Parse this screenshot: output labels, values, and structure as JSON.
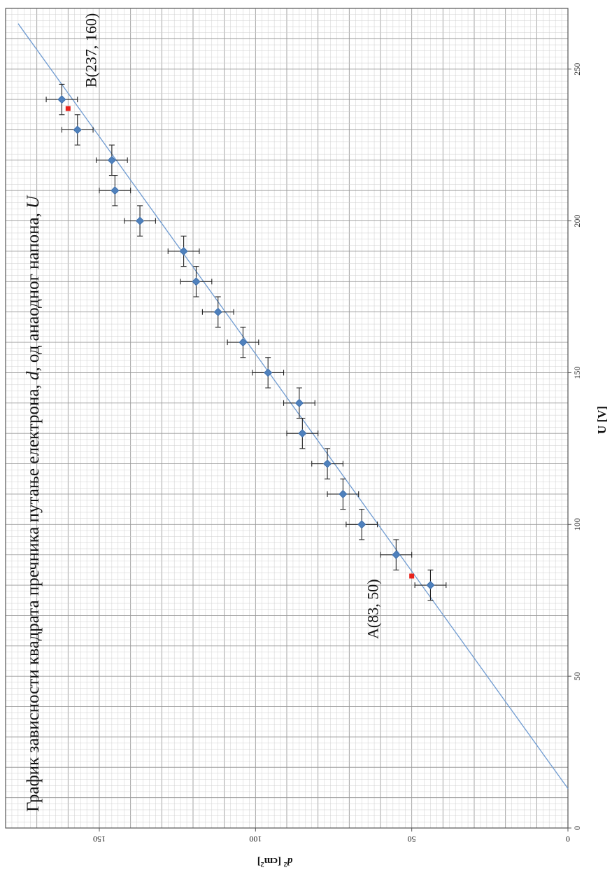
{
  "chart_data": {
    "type": "scatter",
    "title_parts": [
      "График зависности квадрата пречника путање електрона, ",
      "d",
      ", од анаодног напона, ",
      "U"
    ],
    "xlabel": "U [V]",
    "ylabel_base": "d",
    "ylabel_sup1": "2",
    "ylabel_mid": " [cm",
    "ylabel_sup2": "2",
    "ylabel_end": "]",
    "xlim": [
      0,
      270
    ],
    "ylim": [
      0,
      180
    ],
    "x_ticks": [
      "0",
      "50",
      "100",
      "150",
      "200",
      "250"
    ],
    "y_ticks": [
      "0",
      "50",
      "100",
      "150"
    ],
    "grid": true,
    "series": [
      {
        "color": "#4f81bd",
        "x_err": 5,
        "y_err": 5,
        "points": [
          [
            80,
            44
          ],
          [
            90,
            55
          ],
          [
            100,
            66
          ],
          [
            110,
            72
          ],
          [
            120,
            77
          ],
          [
            130,
            85
          ],
          [
            140,
            86
          ],
          [
            150,
            96
          ],
          [
            160,
            104
          ],
          [
            170,
            112
          ],
          [
            180,
            119
          ],
          [
            190,
            123
          ],
          [
            200,
            137
          ],
          [
            210,
            145
          ],
          [
            220,
            146
          ],
          [
            230,
            157
          ],
          [
            240,
            162
          ]
        ]
      }
    ],
    "fit_line": {
      "color": "#6f9bd1",
      "x": [
        13,
        265
      ],
      "y": [
        0,
        176
      ]
    },
    "annotations": [
      {
        "label": "A(83, 50)",
        "x": 83,
        "y": 50,
        "color": "#e8221b"
      },
      {
        "label": "B(237, 160)",
        "x": 237,
        "y": 160,
        "color": "#e8221b"
      }
    ]
  }
}
